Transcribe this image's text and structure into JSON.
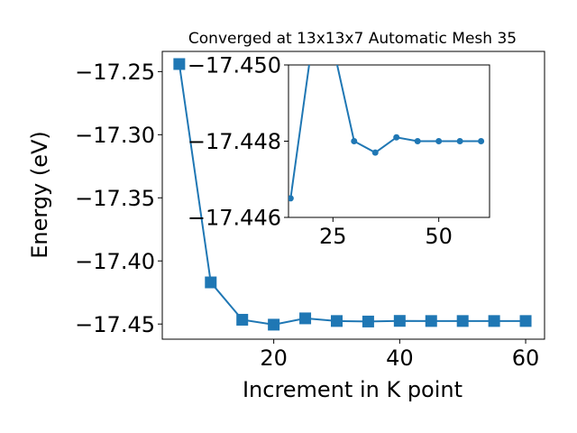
{
  "chart_data": [
    {
      "type": "line",
      "title": "Converged at 13x13x7 Automatic Mesh 35",
      "xlabel": "Increment in K point",
      "ylabel": "Energy (eV)",
      "xlim": [
        2.3,
        63.0
      ],
      "ylim": [
        -17.462,
        -17.234
      ],
      "xticks": [
        20,
        40,
        60
      ],
      "yticks": [
        -17.25,
        -17.3,
        -17.35,
        -17.4,
        -17.45
      ],
      "ytick_labels": [
        "−17.25",
        "−17.30",
        "−17.35",
        "−17.40",
        "−17.45"
      ],
      "marker": "square",
      "color": "#1f77b4",
      "grid": false,
      "series": [
        {
          "x": [
            5,
            10,
            15,
            20,
            25,
            30,
            35,
            40,
            45,
            50,
            55,
            60
          ],
          "values": [
            -17.244,
            -17.417,
            -17.4466,
            -17.4505,
            -17.4455,
            -17.4476,
            -17.448,
            -17.4475,
            -17.4476,
            -17.4476,
            -17.4476,
            -17.4476
          ]
        }
      ]
    },
    {
      "type": "line",
      "title": "",
      "xlabel": "",
      "ylabel": "",
      "xlim": [
        14.5,
        62.0
      ],
      "ylim": [
        -17.446,
        -17.45
      ],
      "xticks": [
        25,
        50
      ],
      "yticks": [
        -17.45,
        -17.448,
        -17.446
      ],
      "ytick_labels": [
        "−17.450",
        "−17.448",
        "−17.446"
      ],
      "marker": "circle",
      "color": "#1f77b4",
      "grid": false,
      "series": [
        {
          "x": [
            15,
            20,
            25,
            30,
            35,
            40,
            45,
            50,
            55,
            60
          ],
          "values": [
            -17.4465,
            -17.4505,
            -17.4505,
            -17.448,
            -17.4477,
            -17.4481,
            -17.448,
            -17.448,
            -17.448,
            -17.448
          ]
        }
      ]
    }
  ]
}
